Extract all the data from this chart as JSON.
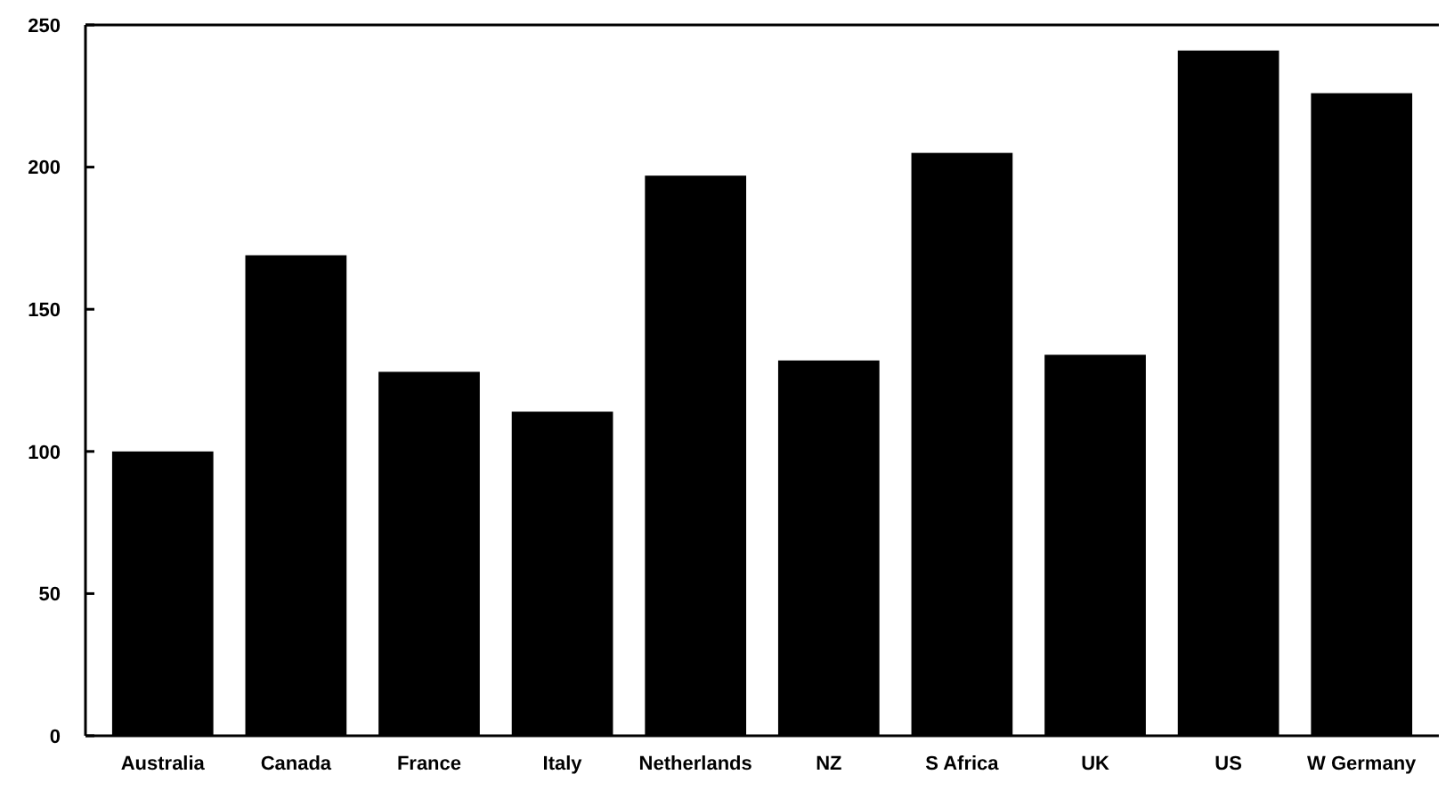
{
  "chart_data": {
    "type": "bar",
    "categories": [
      "Australia",
      "Canada",
      "France",
      "Italy",
      "Netherlands",
      "NZ",
      "S Africa",
      "UK",
      "US",
      "W Germany"
    ],
    "values": [
      100,
      169,
      128,
      114,
      197,
      132,
      205,
      134,
      241,
      226
    ],
    "color": "#000000",
    "ylim": [
      0,
      250
    ],
    "yticks": [
      0,
      50,
      100,
      150,
      200,
      250
    ],
    "grid": false
  }
}
